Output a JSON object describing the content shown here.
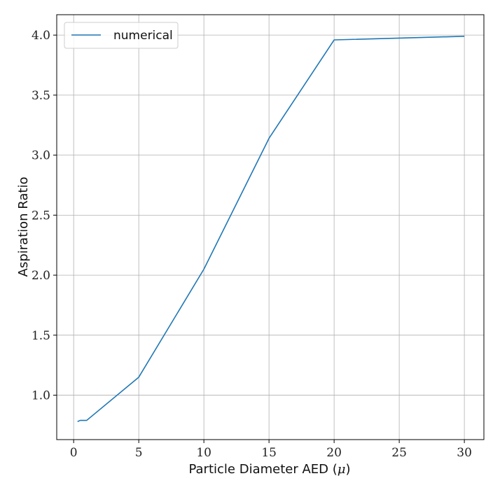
{
  "chart_data": {
    "type": "line",
    "title": "",
    "xlabel": "Particle Diameter AED",
    "xlabel_unit": "μ",
    "ylabel": "Aspiration Ratio",
    "xlim": [
      -1.3,
      31.5
    ],
    "ylim": [
      0.63,
      4.17
    ],
    "xticks": [
      0,
      5,
      10,
      15,
      20,
      25,
      30
    ],
    "yticks": [
      1.0,
      1.5,
      2.0,
      2.5,
      3.0,
      3.5,
      4.0
    ],
    "xtick_labels": [
      "0",
      "5",
      "10",
      "15",
      "20",
      "25",
      "30"
    ],
    "ytick_labels": [
      "1.0",
      "1.5",
      "2.0",
      "2.5",
      "3.0",
      "3.5",
      "4.0"
    ],
    "grid": true,
    "legend_position": "top-left",
    "series": [
      {
        "name": "numerical",
        "color": "#1f77b4",
        "x": [
          0.3,
          0.5,
          0.7,
          1.0,
          5.0,
          10.0,
          15.0,
          20.0,
          30.0
        ],
        "y": [
          0.78,
          0.79,
          0.79,
          0.79,
          1.15,
          2.05,
          3.14,
          3.96,
          3.99
        ]
      }
    ]
  }
}
